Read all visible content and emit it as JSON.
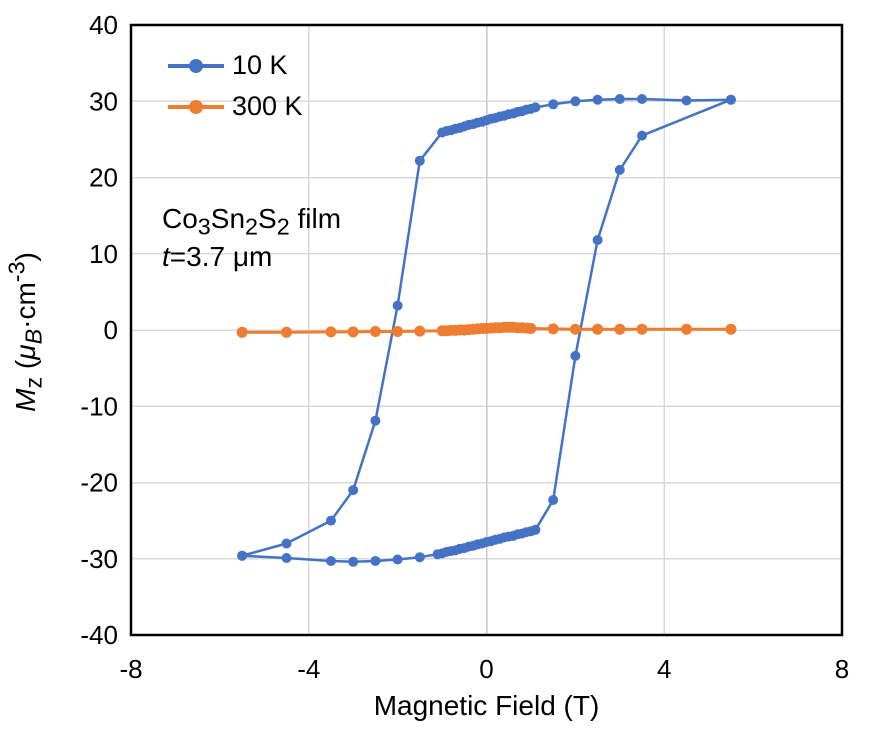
{
  "figure": {
    "legend": {
      "entries": [
        {
          "label": "10 K"
        },
        {
          "label": "300 K"
        }
      ]
    },
    "annotation": {
      "line1_text": "Co3Sn2S2 film",
      "line1_segments": [
        {
          "text": "Co",
          "style": "normal"
        },
        {
          "text": "3",
          "style": "sub"
        },
        {
          "text": "Sn",
          "style": "normal"
        },
        {
          "text": "2",
          "style": "sub"
        },
        {
          "text": "S",
          "style": "normal"
        },
        {
          "text": "2",
          "style": "sub"
        },
        {
          "text": " film",
          "style": "normal"
        }
      ],
      "line2_text": "t=3.7 μm",
      "line2_segments": [
        {
          "text": "t",
          "style": "italic"
        },
        {
          "text": "=3.7 μm",
          "style": "normal"
        }
      ]
    }
  },
  "chart_data": {
    "type": "line",
    "title": "",
    "xlabel": "Magnetic Field (T)",
    "ylabel_text": "Mz (μB·cm-3)",
    "ylabel_segments": [
      {
        "text": "M",
        "style": "italic"
      },
      {
        "text": "z",
        "style": "sub"
      },
      {
        "text": " (",
        "style": "normal"
      },
      {
        "text": "μ",
        "style": "italic"
      },
      {
        "text": "B",
        "style": "italic-sub"
      },
      {
        "text": "·cm",
        "style": "normal"
      },
      {
        "text": "-3",
        "style": "sup"
      },
      {
        "text": ")",
        "style": "normal"
      }
    ],
    "xlim": [
      -8,
      8
    ],
    "ylim": [
      -40,
      40
    ],
    "x_ticks": [
      -8,
      -4,
      0,
      4,
      8
    ],
    "y_ticks": [
      40,
      30,
      20,
      10,
      0,
      -10,
      -20,
      -30,
      -40
    ],
    "x_gridlines": [
      -4,
      0,
      4
    ],
    "y_gridlines": [
      -30,
      -20,
      -10,
      0,
      10,
      20,
      30
    ],
    "grid": true,
    "legend_position": "top-left-inside",
    "colors": {
      "series_10k": "#4472C4",
      "series_300k": "#ED7D31",
      "gridline": "#D9D9D9",
      "frame": "#000000",
      "text": "#000000"
    },
    "series": [
      {
        "name": "10 K",
        "color": "#4472C4",
        "marker": "circle",
        "marker_radius": 5,
        "line_width": 2.5,
        "branches": [
          [
            [
              5.5,
              30.2
            ],
            [
              4.5,
              30.1
            ],
            [
              3.5,
              30.3
            ],
            [
              3.0,
              30.3
            ],
            [
              2.5,
              30.2
            ],
            [
              2.0,
              30.0
            ],
            [
              1.5,
              29.6
            ],
            [
              1.1,
              29.2
            ],
            [
              1.0,
              29.0
            ],
            [
              0.9,
              28.9
            ],
            [
              0.8,
              28.7
            ],
            [
              0.7,
              28.6
            ],
            [
              0.6,
              28.4
            ],
            [
              0.5,
              28.3
            ],
            [
              0.4,
              28.1
            ],
            [
              0.3,
              28.0
            ],
            [
              0.2,
              27.8
            ],
            [
              0.1,
              27.7
            ],
            [
              0.0,
              27.5
            ],
            [
              -0.1,
              27.3
            ],
            [
              -0.2,
              27.2
            ],
            [
              -0.3,
              27.0
            ],
            [
              -0.4,
              26.9
            ],
            [
              -0.5,
              26.7
            ],
            [
              -0.6,
              26.5
            ],
            [
              -0.7,
              26.4
            ],
            [
              -0.8,
              26.2
            ],
            [
              -0.9,
              26.1
            ],
            [
              -1.0,
              25.9
            ],
            [
              -1.5,
              22.2
            ],
            [
              -2.0,
              3.2
            ],
            [
              -2.5,
              -11.9
            ],
            [
              -3.0,
              -21.0
            ],
            [
              -3.5,
              -25.0
            ],
            [
              -4.5,
              -28.0
            ],
            [
              -5.5,
              -29.6
            ]
          ],
          [
            [
              -5.5,
              -29.6
            ],
            [
              -4.5,
              -29.9
            ],
            [
              -3.5,
              -30.3
            ],
            [
              -3.0,
              -30.4
            ],
            [
              -2.5,
              -30.3
            ],
            [
              -2.0,
              -30.1
            ],
            [
              -1.5,
              -29.8
            ],
            [
              -1.1,
              -29.4
            ],
            [
              -1.0,
              -29.3
            ],
            [
              -0.9,
              -29.1
            ],
            [
              -0.8,
              -29.0
            ],
            [
              -0.7,
              -28.9
            ],
            [
              -0.6,
              -28.7
            ],
            [
              -0.5,
              -28.6
            ],
            [
              -0.4,
              -28.4
            ],
            [
              -0.3,
              -28.3
            ],
            [
              -0.2,
              -28.1
            ],
            [
              -0.1,
              -28.0
            ],
            [
              0.0,
              -27.8
            ],
            [
              0.1,
              -27.7
            ],
            [
              0.2,
              -27.5
            ],
            [
              0.3,
              -27.4
            ],
            [
              0.4,
              -27.2
            ],
            [
              0.5,
              -27.1
            ],
            [
              0.6,
              -27.0
            ],
            [
              0.7,
              -26.8
            ],
            [
              0.8,
              -26.7
            ],
            [
              0.9,
              -26.5
            ],
            [
              1.0,
              -26.4
            ],
            [
              1.1,
              -26.2
            ],
            [
              1.5,
              -22.3
            ],
            [
              2.0,
              -3.4
            ],
            [
              2.5,
              11.8
            ],
            [
              3.0,
              21.0
            ],
            [
              3.5,
              25.5
            ],
            [
              5.5,
              30.2
            ]
          ]
        ]
      },
      {
        "name": "300 K",
        "color": "#ED7D31",
        "marker": "circle",
        "marker_radius": 5.5,
        "line_width": 3,
        "branches": [
          [
            [
              -5.5,
              -0.3
            ],
            [
              -4.5,
              -0.3
            ],
            [
              -3.5,
              -0.25
            ],
            [
              -3.0,
              -0.25
            ],
            [
              -2.5,
              -0.2
            ],
            [
              -2.0,
              -0.2
            ],
            [
              -1.5,
              -0.15
            ],
            [
              -1.0,
              -0.1
            ],
            [
              -0.9,
              -0.1
            ],
            [
              -0.8,
              -0.05
            ],
            [
              -0.7,
              -0.05
            ],
            [
              -0.6,
              0.0
            ],
            [
              -0.5,
              0.0
            ],
            [
              -0.4,
              0.05
            ],
            [
              -0.3,
              0.1
            ],
            [
              -0.2,
              0.15
            ],
            [
              -0.1,
              0.2
            ],
            [
              0.0,
              0.2
            ],
            [
              0.1,
              0.25
            ],
            [
              0.2,
              0.3
            ],
            [
              0.3,
              0.3
            ],
            [
              0.4,
              0.35
            ],
            [
              0.5,
              0.35
            ],
            [
              0.6,
              0.35
            ],
            [
              0.7,
              0.3
            ],
            [
              0.8,
              0.3
            ],
            [
              0.9,
              0.25
            ],
            [
              1.0,
              0.2
            ],
            [
              1.5,
              0.15
            ],
            [
              2.0,
              0.1
            ],
            [
              2.5,
              0.1
            ],
            [
              3.0,
              0.1
            ],
            [
              3.5,
              0.1
            ],
            [
              4.5,
              0.1
            ],
            [
              5.5,
              0.1
            ]
          ]
        ]
      }
    ]
  }
}
